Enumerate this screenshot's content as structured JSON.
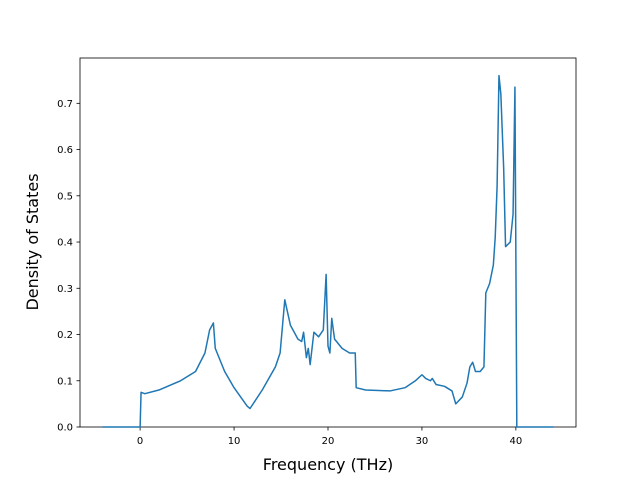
{
  "chart_data": {
    "type": "line",
    "x_label": "Frequency (THz)",
    "y_label": "Density of States",
    "x": [
      -4,
      0,
      0.1,
      0.5,
      2,
      4.3,
      5.9,
      6.9,
      7.4,
      7.8,
      8.0,
      9.0,
      10,
      11.4,
      11.7,
      13,
      14.4,
      14.9,
      15.4,
      16,
      16.8,
      17.2,
      17.4,
      17.7,
      17.9,
      18.1,
      18.5,
      19,
      19.5,
      19.8,
      20,
      20.2,
      20.4,
      20.7,
      21.5,
      22.3,
      22.9,
      23,
      24,
      26.6,
      28.2,
      29.3,
      30,
      30.4,
      30.9,
      31.1,
      31.5,
      32.4,
      33.2,
      33.6,
      34.3,
      34.8,
      35.1,
      35.4,
      35.7,
      36.2,
      36.6,
      36.8,
      37.2,
      37.6,
      37.8,
      38,
      38.2,
      38.4,
      38.7,
      38.9,
      39.4,
      39.7,
      39.9,
      40.1,
      44
    ],
    "series": [
      {
        "color": "#1f77b4",
        "values": [
          0,
          0,
          0.075,
          0.072,
          0.08,
          0.1,
          0.12,
          0.16,
          0.21,
          0.225,
          0.17,
          0.12,
          0.085,
          0.045,
          0.04,
          0.08,
          0.13,
          0.16,
          0.275,
          0.22,
          0.19,
          0.185,
          0.205,
          0.15,
          0.17,
          0.135,
          0.205,
          0.195,
          0.21,
          0.33,
          0.175,
          0.16,
          0.235,
          0.19,
          0.17,
          0.16,
          0.16,
          0.085,
          0.08,
          0.078,
          0.085,
          0.1,
          0.113,
          0.105,
          0.1,
          0.105,
          0.092,
          0.088,
          0.078,
          0.05,
          0.065,
          0.095,
          0.13,
          0.14,
          0.12,
          0.12,
          0.13,
          0.29,
          0.31,
          0.35,
          0.41,
          0.52,
          0.76,
          0.72,
          0.56,
          0.39,
          0.4,
          0.46,
          0.735,
          0,
          0
        ]
      }
    ],
    "xlim": [
      -6.4,
      46.4
    ],
    "ylim": [
      0,
      0.798
    ],
    "xticks": [
      0,
      10,
      20,
      30,
      40
    ],
    "yticks": [
      {
        "value": 0,
        "label": "0.0"
      },
      0.1,
      0.2,
      0.3,
      0.4,
      0.5,
      0.6,
      0.7
    ]
  }
}
